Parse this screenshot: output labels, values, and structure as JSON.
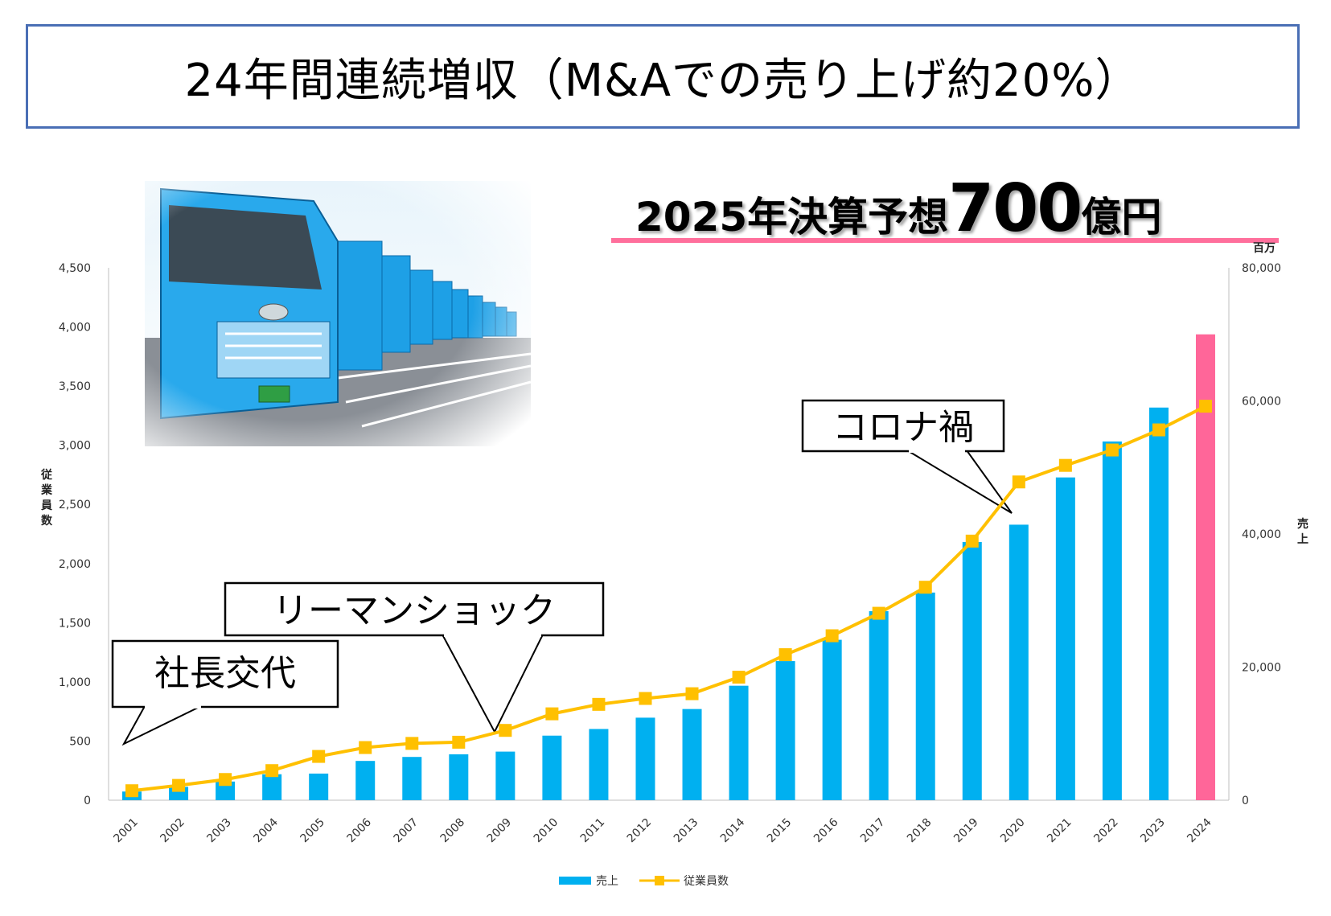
{
  "title": "24年間連続増収（M&Aでの売り上げ約20%）",
  "forecast": {
    "prefix": "2025年決算予想",
    "number": "700",
    "suffix": "億円"
  },
  "callouts": {
    "ceo_change": "社長交代",
    "lehman": "リーマンショック",
    "corona": "コロナ禍"
  },
  "colors": {
    "revenue_bar": "#00b0f0",
    "forecast_bar": "#ff6699",
    "employees_line": "#ffc000",
    "title_border": "#4a6fb5"
  },
  "photo": {
    "icon": "truck-fleet-photo"
  },
  "chart_data": {
    "type": "bar",
    "categories": [
      "2001",
      "2002",
      "2003",
      "2004",
      "2005",
      "2006",
      "2007",
      "2008",
      "2009",
      "2010",
      "2011",
      "2012",
      "2013",
      "2014",
      "2015",
      "2016",
      "2017",
      "2018",
      "2019",
      "2020",
      "2021",
      "2022",
      "2023",
      "2024"
    ],
    "series": [
      {
        "name": "売上",
        "type": "bar",
        "axis": "right",
        "values": [
          1300,
          2000,
          2800,
          3900,
          4000,
          5900,
          6500,
          6900,
          7300,
          9700,
          10700,
          12400,
          13700,
          17200,
          20900,
          24100,
          28400,
          31200,
          38800,
          41400,
          48500,
          53900,
          59000,
          70000
        ]
      },
      {
        "name": "従業員数",
        "type": "line",
        "axis": "left",
        "values": [
          80,
          125,
          175,
          250,
          370,
          445,
          480,
          490,
          590,
          730,
          810,
          860,
          900,
          1040,
          1230,
          1390,
          1580,
          1800,
          2190,
          2690,
          2830,
          2960,
          3130,
          3330
        ]
      }
    ],
    "ylabel_left": "従業員数",
    "ylabel_right": "売上",
    "right_unit": "百万",
    "ylim_left": [
      0,
      4500
    ],
    "ylim_right": [
      0,
      80000
    ],
    "yticks_left": [
      "0",
      "500",
      "1,000",
      "1,500",
      "2,000",
      "2,500",
      "3,000",
      "3,500",
      "4,000",
      "4,500"
    ],
    "yticks_right": [
      "0",
      "20,000",
      "40,000",
      "60,000",
      "80,000"
    ],
    "legend": [
      "売上",
      "従業員数"
    ],
    "legend_position": "bottom",
    "grid": false
  }
}
